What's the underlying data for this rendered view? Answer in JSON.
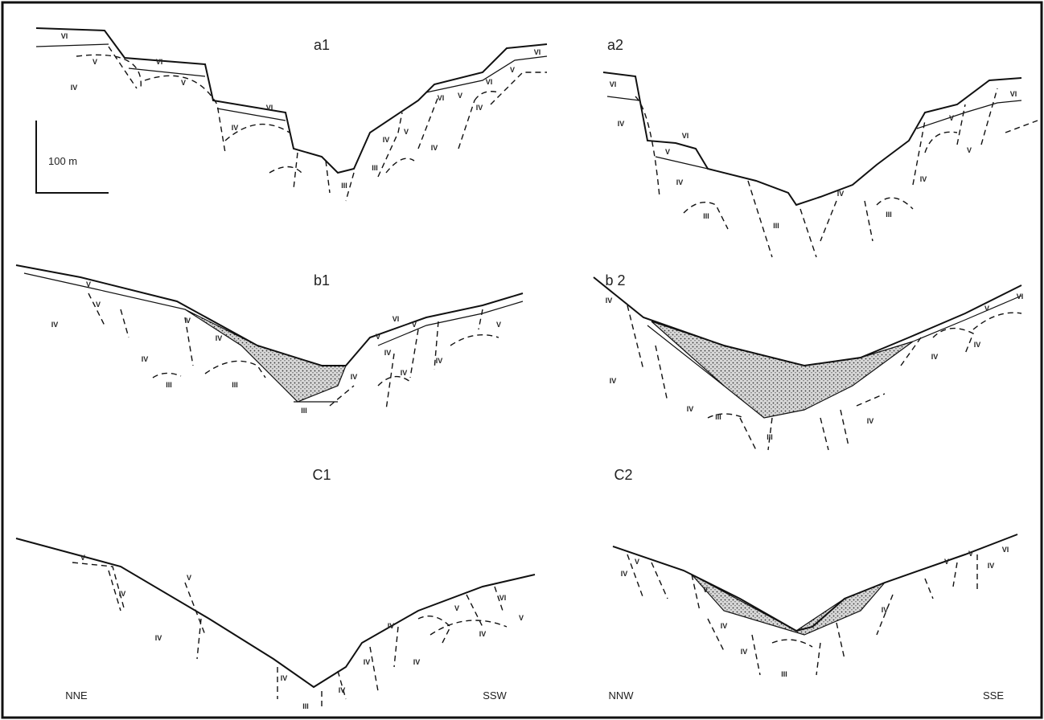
{
  "scale_bar": "100 m",
  "orientation": {
    "left_start": "NNE",
    "left_end": "SSW",
    "right_start": "NNW",
    "right_end": "SSE"
  },
  "panels": [
    {
      "title": "a1",
      "labels": [
        "VI",
        "V",
        "IV",
        "VI",
        "V",
        "VI",
        "IV",
        "III",
        "III",
        "IV",
        "V",
        "IV",
        "VI",
        "V",
        "IV",
        "VI",
        "V",
        "VI"
      ]
    },
    {
      "title": "a2",
      "labels": [
        "VI",
        "IV",
        "VI",
        "V",
        "IV",
        "III",
        "III",
        "IV",
        "III",
        "IV",
        "V",
        "V",
        "VI"
      ]
    },
    {
      "title": "b1",
      "labels": [
        "V",
        "V",
        "IV",
        "IV",
        "V",
        "IV",
        "III",
        "III",
        "III",
        "IV",
        "IV",
        "V",
        "VI",
        "V",
        "IV",
        "IV",
        "V"
      ]
    },
    {
      "title": "b 2",
      "labels": [
        "IV",
        "IV",
        "IV",
        "III",
        "III",
        "IV",
        "IV",
        "IV",
        "V",
        "VI"
      ]
    },
    {
      "title": "C1",
      "labels": [
        "V",
        "IV",
        "V",
        "IV",
        "IV",
        "III",
        "IV",
        "IV",
        "IV",
        "IV",
        "V",
        "IV",
        "VI",
        "V"
      ]
    },
    {
      "title": "C2",
      "labels": [
        "IV",
        "V",
        "V",
        "IV",
        "IV",
        "III",
        "IV",
        "V",
        "V",
        "IV",
        "VI"
      ]
    }
  ]
}
